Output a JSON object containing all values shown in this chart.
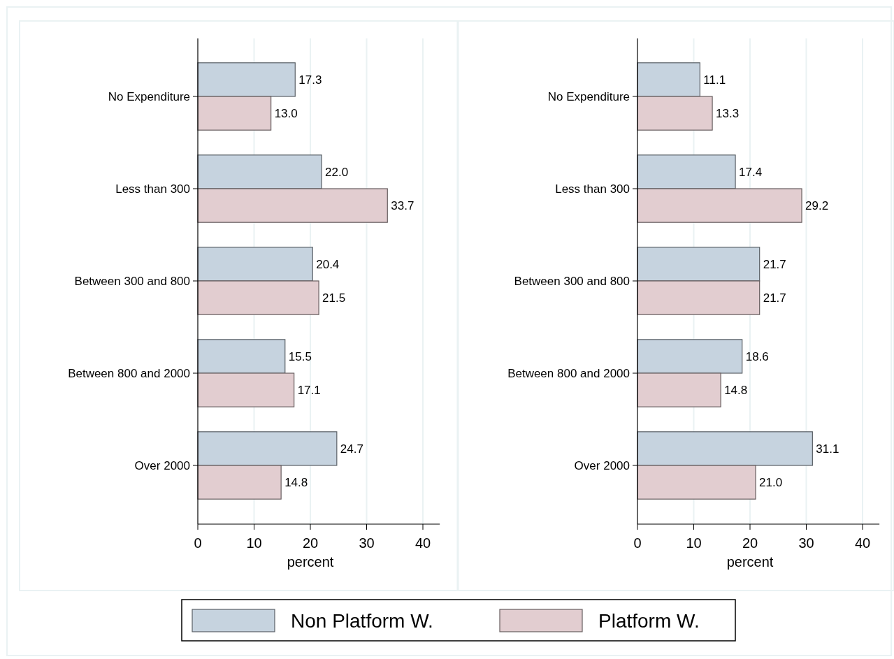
{
  "chart_data": [
    {
      "type": "bar",
      "orientation": "horizontal",
      "categories": [
        "No Expenditure",
        "Less than 300",
        "Between 300 and 800",
        "Between 800 and 2000",
        "Over 2000"
      ],
      "xlabel": "percent",
      "xlim": [
        0,
        43
      ],
      "xticks": [
        0,
        10,
        20,
        30,
        40
      ],
      "grid": "x",
      "legend": "bottom",
      "series": [
        {
          "name": "Non Platform W.",
          "color": "#c6d3df",
          "values": [
            17.3,
            22.0,
            20.4,
            15.5,
            24.7
          ],
          "value_labels": [
            "17.3",
            "22.0",
            "20.4",
            "15.5",
            "24.7"
          ]
        },
        {
          "name": "Platform W.",
          "color": "#e2cdd0",
          "values": [
            13.0,
            33.7,
            21.5,
            17.1,
            14.8
          ],
          "value_labels": [
            "13.0",
            "33.7",
            "21.5",
            "17.1",
            "14.8"
          ]
        }
      ]
    },
    {
      "type": "bar",
      "orientation": "horizontal",
      "categories": [
        "No Expenditure",
        "Less than 300",
        "Between 300 and 800",
        "Between 800 and 2000",
        "Over 2000"
      ],
      "xlabel": "percent",
      "xlim": [
        0,
        43
      ],
      "xticks": [
        0,
        10,
        20,
        30,
        40
      ],
      "grid": "x",
      "series": [
        {
          "color": "#c6d3df",
          "values": [
            11.1,
            17.4,
            21.7,
            18.6,
            31.1
          ],
          "value_labels": [
            "11.1",
            "17.4",
            "21.7",
            "18.6",
            "31.1"
          ]
        },
        {
          "color": "#e2cdd0",
          "values": [
            13.3,
            29.2,
            21.7,
            14.8,
            21.0
          ],
          "value_labels": [
            "13.3",
            "29.2",
            "21.7",
            "14.8",
            "21.0"
          ]
        }
      ]
    }
  ]
}
